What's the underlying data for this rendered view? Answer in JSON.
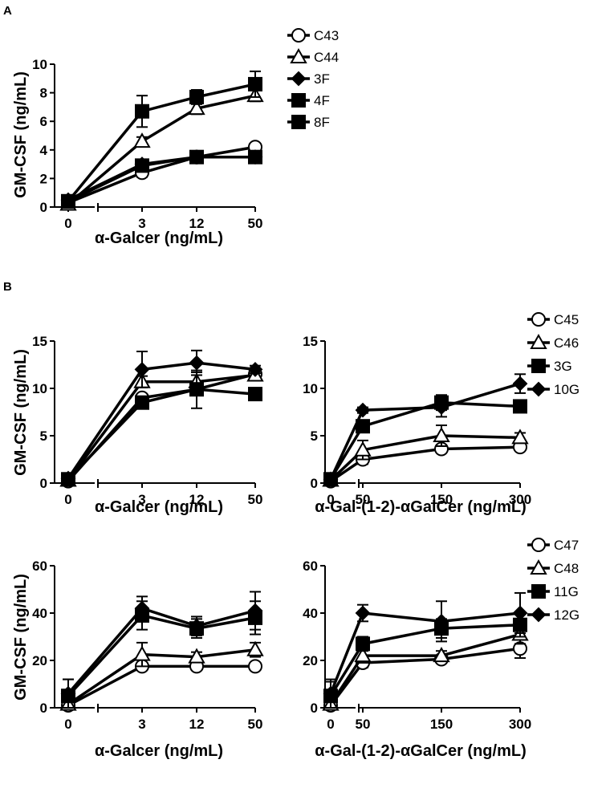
{
  "panel_labels": {
    "a": "A",
    "b": "B"
  },
  "chart_data": [
    {
      "id": "A",
      "type": "line",
      "title": "",
      "xlabel": "α-Galcer (ng/mL)",
      "ylabel": "GM-CSF (ng/mL)",
      "x_ticks": [
        "0",
        "3",
        "12",
        "50"
      ],
      "y_ticks": [
        "0",
        "2",
        "4",
        "6",
        "8",
        "10"
      ],
      "ylim": [
        0,
        10
      ],
      "grid": false,
      "legend": [
        "C43",
        "C44",
        "3F",
        "4F",
        "8F"
      ],
      "series": [
        {
          "name": "C43",
          "marker": "circle-open",
          "values": [
            0.3,
            2.4,
            3.5,
            4.2
          ],
          "err": [
            0,
            0.3,
            0.3,
            0.2
          ]
        },
        {
          "name": "C44",
          "marker": "triangle-open",
          "values": [
            0.2,
            4.6,
            6.9,
            7.8
          ],
          "err": [
            0,
            0.3,
            0.4,
            0.4
          ]
        },
        {
          "name": "3F",
          "marker": "diamond-filled",
          "values": [
            0.5,
            3.0,
            3.5,
            3.5
          ],
          "err": [
            0,
            0.2,
            0.2,
            0.2
          ]
        },
        {
          "name": "4F",
          "marker": "square-filled",
          "values": [
            0.4,
            6.7,
            7.7,
            8.6
          ],
          "err": [
            0,
            1.1,
            0.5,
            0.9
          ]
        },
        {
          "name": "8F",
          "marker": "square-filled",
          "values": [
            0.4,
            2.9,
            3.5,
            3.5
          ],
          "err": [
            0,
            0.2,
            0.2,
            0.2
          ]
        }
      ]
    },
    {
      "id": "B1",
      "type": "line",
      "xlabel": "α-Galcer (ng/mL)",
      "ylabel": "GM-CSF (ng/mL)",
      "x_ticks": [
        "0",
        "3",
        "12",
        "50"
      ],
      "y_ticks": [
        "0",
        "5",
        "10",
        "15"
      ],
      "ylim": [
        0,
        15
      ],
      "grid": false,
      "series": [
        {
          "name": "C45",
          "marker": "circle-open",
          "values": [
            0.2,
            9.0,
            9.9,
            11.5
          ],
          "err": [
            0,
            0.4,
            0.5,
            0.5
          ]
        },
        {
          "name": "C46",
          "marker": "triangle-open",
          "values": [
            0.3,
            10.7,
            10.7,
            11.4
          ],
          "err": [
            0,
            0.6,
            1.0,
            0.5
          ]
        },
        {
          "name": "3G",
          "marker": "square-filled",
          "values": [
            0.4,
            8.5,
            9.9,
            9.4
          ],
          "err": [
            0,
            0.5,
            2.0,
            0.5
          ]
        },
        {
          "name": "10G",
          "marker": "diamond-filled",
          "values": [
            0.5,
            12.0,
            12.7,
            12.0
          ],
          "err": [
            0,
            1.9,
            1.3,
            0.4
          ]
        }
      ]
    },
    {
      "id": "B2",
      "type": "line",
      "xlabel": "α-Gal-(1-2)-αGalCer (ng/mL)",
      "ylabel": "",
      "x_ticks": [
        "0",
        "50",
        "150",
        "300"
      ],
      "y_ticks": [
        "0",
        "5",
        "10",
        "15"
      ],
      "ylim": [
        0,
        15
      ],
      "grid": false,
      "legend": [
        "C45",
        "C46",
        "3G",
        "10G"
      ],
      "series": [
        {
          "name": "C45",
          "marker": "circle-open",
          "values": [
            0.2,
            2.5,
            3.6,
            3.8
          ],
          "err": [
            0,
            0.5,
            0.4,
            0.3
          ]
        },
        {
          "name": "C46",
          "marker": "triangle-open",
          "values": [
            0.3,
            3.5,
            5.0,
            4.8
          ],
          "err": [
            0,
            1.0,
            1.1,
            0.5
          ]
        },
        {
          "name": "3G",
          "marker": "square-filled",
          "values": [
            0.4,
            6.0,
            8.5,
            8.1
          ],
          "err": [
            0,
            0.6,
            0.8,
            0.5
          ]
        },
        {
          "name": "10G",
          "marker": "diamond-filled",
          "values": [
            0.4,
            7.7,
            8.0,
            10.5
          ],
          "err": [
            0,
            0.3,
            1.0,
            1.0
          ]
        }
      ]
    },
    {
      "id": "B3",
      "type": "line",
      "xlabel": "α-Galcer (ng/mL)",
      "ylabel": "GM-CSF (ng/mL)",
      "x_ticks": [
        "0",
        "3",
        "12",
        "50"
      ],
      "y_ticks": [
        "0",
        "20",
        "40",
        "60"
      ],
      "ylim": [
        0,
        60
      ],
      "grid": false,
      "series": [
        {
          "name": "C47",
          "marker": "circle-open",
          "values": [
            1.0,
            17.5,
            17.5,
            17.5
          ],
          "err": [
            0,
            1.5,
            1.5,
            1.0
          ]
        },
        {
          "name": "C48",
          "marker": "triangle-open",
          "values": [
            1.5,
            22.5,
            21.5,
            24.5
          ],
          "err": [
            0,
            5.0,
            2.0,
            3.0
          ]
        },
        {
          "name": "11G",
          "marker": "square-filled",
          "values": [
            5.0,
            39.0,
            33.5,
            38.0
          ],
          "err": [
            7.0,
            6.0,
            4.0,
            7.0
          ]
        },
        {
          "name": "12G",
          "marker": "diamond-filled",
          "values": [
            6.0,
            42.0,
            34.5,
            41.0
          ],
          "err": [
            6.0,
            5.0,
            4.0,
            8.0
          ]
        }
      ]
    },
    {
      "id": "B4",
      "type": "line",
      "xlabel": "α-Gal-(1-2)-αGalCer (ng/mL)",
      "ylabel": "",
      "x_ticks": [
        "0",
        "50",
        "150",
        "300"
      ],
      "y_ticks": [
        "0",
        "20",
        "40",
        "60"
      ],
      "ylim": [
        0,
        60
      ],
      "grid": false,
      "legend": [
        "C47",
        "C48",
        "11G",
        "12G"
      ],
      "series": [
        {
          "name": "C47",
          "marker": "circle-open",
          "values": [
            1.0,
            19.0,
            20.5,
            25.0
          ],
          "err": [
            0,
            2.0,
            1.5,
            4.0
          ]
        },
        {
          "name": "C48",
          "marker": "triangle-open",
          "values": [
            1.5,
            22.0,
            22.0,
            31.0
          ],
          "err": [
            0,
            3.0,
            2.0,
            4.0
          ]
        },
        {
          "name": "11G",
          "marker": "square-filled",
          "values": [
            5.0,
            27.0,
            33.5,
            35.0
          ],
          "err": [
            6.0,
            3.0,
            4.0,
            5.0
          ]
        },
        {
          "name": "12G",
          "marker": "diamond-filled",
          "values": [
            6.0,
            40.0,
            36.5,
            40.0
          ],
          "err": [
            6.0,
            3.5,
            8.5,
            8.5
          ]
        }
      ]
    }
  ]
}
